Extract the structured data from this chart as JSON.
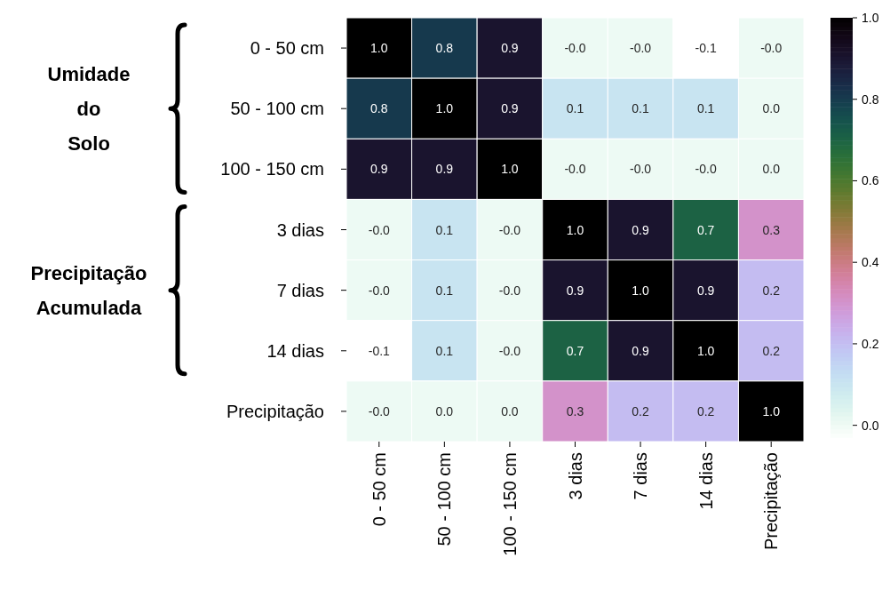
{
  "chart_data": {
    "type": "heatmap",
    "categories": [
      "0 - 50 cm",
      "50 - 100 cm",
      "100 - 150 cm",
      "3 dias",
      "7 dias",
      "14 dias",
      "Precipitação"
    ],
    "y_categories": [
      "0 - 50 cm",
      "50 - 100 cm",
      "100 - 150 cm",
      "3 dias",
      "7 dias",
      "14 dias",
      "Precipitação"
    ],
    "cells": [
      [
        1.0,
        0.8,
        0.9,
        0.0,
        0.0,
        -0.1,
        0.0
      ],
      [
        0.8,
        1.0,
        0.9,
        0.1,
        0.1,
        0.1,
        0.0
      ],
      [
        0.9,
        0.9,
        1.0,
        0.0,
        0.0,
        0.0,
        0.0
      ],
      [
        0.0,
        0.1,
        0.0,
        1.0,
        0.9,
        0.7,
        0.3
      ],
      [
        0.0,
        0.1,
        0.0,
        0.9,
        1.0,
        0.9,
        0.2
      ],
      [
        -0.1,
        0.1,
        0.0,
        0.7,
        0.9,
        1.0,
        0.2
      ],
      [
        0.0,
        0.0,
        0.0,
        0.3,
        0.2,
        0.2,
        1.0
      ]
    ],
    "cell_labels": [
      [
        "1.0",
        "0.8",
        "0.9",
        "-0.0",
        "-0.0",
        "-0.1",
        "-0.0"
      ],
      [
        "0.8",
        "1.0",
        "0.9",
        "0.1",
        "0.1",
        "0.1",
        "0.0"
      ],
      [
        "0.9",
        "0.9",
        "1.0",
        "-0.0",
        "-0.0",
        "-0.0",
        "0.0"
      ],
      [
        "-0.0",
        "0.1",
        "-0.0",
        "1.0",
        "0.9",
        "0.7",
        "0.3"
      ],
      [
        "-0.0",
        "0.1",
        "-0.0",
        "0.9",
        "1.0",
        "0.9",
        "0.2"
      ],
      [
        "-0.1",
        "0.1",
        "-0.0",
        "0.7",
        "0.9",
        "1.0",
        "0.2"
      ],
      [
        "-0.0",
        "0.0",
        "0.0",
        "0.3",
        "0.2",
        "0.2",
        "1.0"
      ]
    ],
    "clim": [
      -0.04,
      1.0
    ],
    "cticks": [
      {
        "value": 0,
        "label": "0.0"
      },
      {
        "value": 0.2,
        "label": "0.2"
      },
      {
        "value": 0.4,
        "label": "0.4"
      },
      {
        "value": 0.6,
        "label": "0.6"
      },
      {
        "value": 0.8,
        "label": "0.8"
      },
      {
        "value": 1.0,
        "label": "1.0"
      }
    ],
    "annotations": [
      "Umidade do Solo",
      "Precipitação Acumulada"
    ]
  }
}
